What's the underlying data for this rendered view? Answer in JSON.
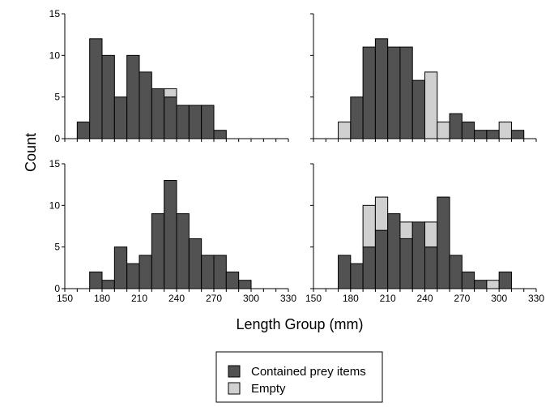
{
  "chart_data": {
    "type": "bar",
    "subtype": "stacked-histogram-facets",
    "layout": "2x2 grid",
    "xlabel": "Length Group (mm)",
    "ylabel": "Count",
    "xlim": [
      150,
      330
    ],
    "ylim": [
      0,
      15
    ],
    "bin_width": 10,
    "x_ticks": [
      150,
      180,
      210,
      240,
      270,
      300,
      330
    ],
    "y_ticks": [
      0,
      5,
      10,
      15
    ],
    "x_tick_labels_shown_on": "bottom row",
    "y_tick_labels_shown_on": "left column",
    "legend_position": "bottom-center",
    "colors": {
      "contained": "#525252",
      "empty": "#d0d0d0",
      "outline": "#000000"
    },
    "series": [
      {
        "name": "Contained prey items",
        "key": "contained"
      },
      {
        "name": "Empty",
        "key": "empty"
      }
    ],
    "panels": [
      {
        "position": "top-left",
        "bin_starts": [
          160,
          170,
          180,
          190,
          200,
          210,
          220,
          230,
          240,
          250,
          260,
          270
        ],
        "contained": [
          2,
          12,
          10,
          5,
          10,
          8,
          6,
          5,
          4,
          4,
          4,
          1
        ],
        "empty": [
          0,
          0,
          0,
          0,
          0,
          0,
          0,
          1,
          0,
          0,
          0,
          0
        ]
      },
      {
        "position": "top-right",
        "bin_starts": [
          170,
          180,
          190,
          200,
          210,
          220,
          230,
          240,
          250,
          260,
          270,
          280,
          290,
          300,
          310
        ],
        "contained": [
          0,
          5,
          11,
          12,
          11,
          11,
          7,
          0,
          0,
          3,
          2,
          1,
          1,
          0,
          1
        ],
        "empty": [
          2,
          0,
          0,
          0,
          0,
          0,
          0,
          8,
          2,
          0,
          0,
          0,
          0,
          2,
          0
        ]
      },
      {
        "position": "bottom-left",
        "bin_starts": [
          170,
          180,
          190,
          200,
          210,
          220,
          230,
          240,
          250,
          260,
          270,
          280,
          290
        ],
        "contained": [
          2,
          1,
          5,
          3,
          4,
          9,
          13,
          9,
          6,
          4,
          4,
          2,
          1
        ],
        "empty": [
          0,
          0,
          0,
          0,
          0,
          0,
          0,
          0,
          0,
          0,
          0,
          0,
          0
        ]
      },
      {
        "position": "bottom-right",
        "bin_starts": [
          170,
          180,
          190,
          200,
          210,
          220,
          230,
          240,
          250,
          260,
          270,
          280,
          290,
          300
        ],
        "contained": [
          4,
          3,
          5,
          7,
          9,
          6,
          8,
          5,
          11,
          4,
          2,
          1,
          0,
          2
        ],
        "empty": [
          0,
          0,
          5,
          4,
          0,
          2,
          0,
          3,
          0,
          0,
          0,
          0,
          1,
          0
        ]
      }
    ]
  }
}
